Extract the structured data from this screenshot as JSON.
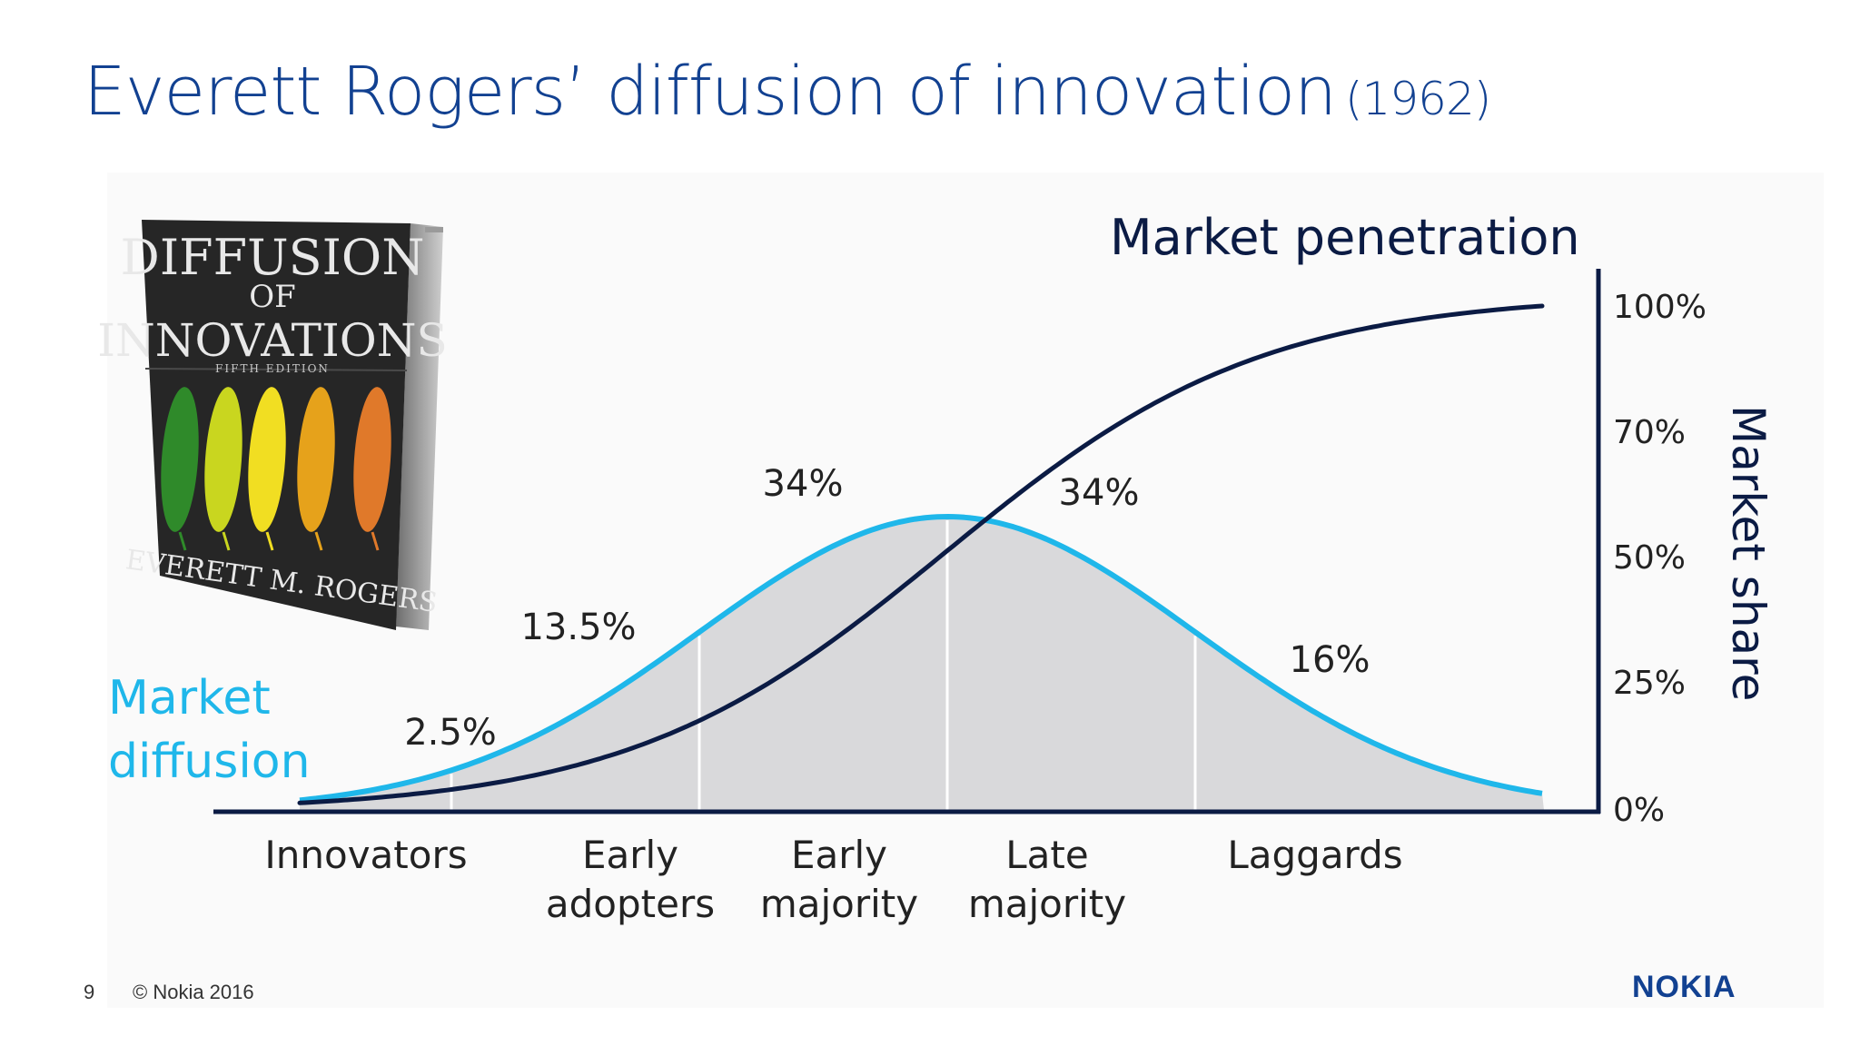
{
  "header": {
    "title": "Everett Rogers’ diffusion of innovation",
    "year": "(1962)"
  },
  "book": {
    "title_line1": "DIFFUSION",
    "title_line2": "OF",
    "title_line3": "INNOVATIONS",
    "edition": "FIFTH EDITION",
    "author": "EVERETT M. ROGERS",
    "leaf_colors": [
      "#2f8a2a",
      "#c9d61f",
      "#f1de22",
      "#e6a21b",
      "#e0792a"
    ]
  },
  "chart_data": {
    "type": "area",
    "series": [
      {
        "name": "Market diffusion",
        "color": "#1fb7ea"
      },
      {
        "name": "Market penetration",
        "color": "#0b1b44"
      }
    ],
    "segments": [
      {
        "category": "Innovators",
        "line1": "Innovators",
        "line2": "",
        "share": "2.5%"
      },
      {
        "category": "Early adopters",
        "line1": "Early",
        "line2": "adopters",
        "share": "13.5%"
      },
      {
        "category": "Early majority",
        "line1": "Early",
        "line2": "majority",
        "share": "34%"
      },
      {
        "category": "Late majority",
        "line1": "Late",
        "line2": "majority",
        "share": "34%"
      },
      {
        "category": "Laggards",
        "line1": "Laggards",
        "line2": "",
        "share": "16%"
      }
    ],
    "y_axis": {
      "label": "Market share",
      "ticks": [
        "100%",
        "70%",
        "50%",
        "25%",
        "0%"
      ]
    },
    "diffusion_label_line1": "Market",
    "diffusion_label_line2": "diffusion",
    "penetration_label": "Market penetration",
    "fill_color": "#d9d9db"
  },
  "footer": {
    "page": "9",
    "copyright": "© Nokia 2016",
    "logo": "NOKIA"
  }
}
